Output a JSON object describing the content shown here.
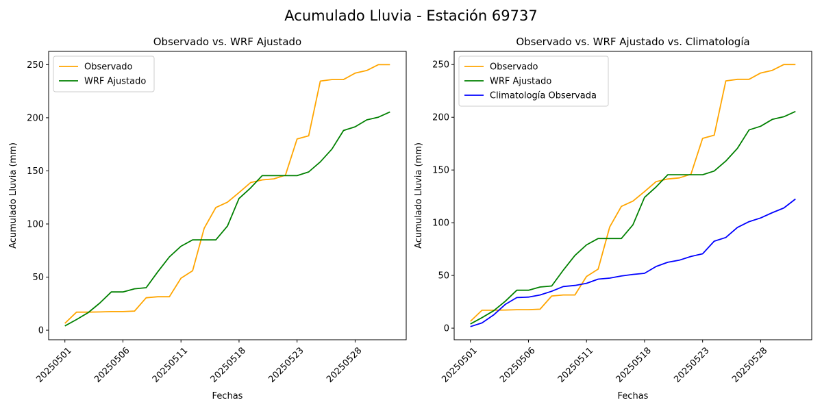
{
  "figure": {
    "suptitle": "Acumulado Lluvia - Estación 69737"
  },
  "chart_data": [
    {
      "type": "line",
      "title": "Observado vs. WRF Ajustado",
      "xlabel": "Fechas",
      "ylabel": "Acumulado Lluvia (mm)",
      "ylim": [
        -9,
        262.5
      ],
      "yticks": [
        0,
        50,
        100,
        150,
        200,
        250
      ],
      "xtick_labels": [
        "20250501",
        "20250506",
        "20250511",
        "20250518",
        "20250523",
        "20250528"
      ],
      "xtick_index": [
        0,
        5,
        10,
        15,
        20,
        25
      ],
      "legend": "top-left",
      "grid": false,
      "series": [
        {
          "name": "Observado",
          "color": "#ffa500",
          "values": [
            6.5,
            17,
            17,
            17.2,
            17.5,
            17.5,
            18,
            30.5,
            31.5,
            31.5,
            49,
            56,
            96,
            115.5,
            120.5,
            129.5,
            139,
            141.5,
            142.5,
            146,
            180,
            183,
            234.5,
            236,
            236,
            242,
            244.5,
            250,
            250
          ]
        },
        {
          "name": "WRF Ajustado",
          "color": "#008000",
          "values": [
            4,
            10,
            16.5,
            25.5,
            36,
            36,
            39,
            40,
            55,
            69,
            79,
            85,
            85,
            85,
            98,
            124,
            134,
            145.5,
            145.5,
            145.5,
            145.5,
            149,
            158.5,
            170.5,
            188,
            191.5,
            198,
            200.5,
            205.5
          ]
        }
      ]
    },
    {
      "type": "line",
      "title": "Observado vs. WRF Ajustado vs. Climatología",
      "xlabel": "Fechas",
      "ylabel": "Acumulado Lluvia (mm)",
      "ylim": [
        -11,
        262.5
      ],
      "yticks": [
        0,
        50,
        100,
        150,
        200,
        250
      ],
      "xtick_labels": [
        "20250501",
        "20250506",
        "20250511",
        "20250518",
        "20250523",
        "20250528"
      ],
      "xtick_index": [
        0,
        5,
        10,
        15,
        20,
        25
      ],
      "legend": "top-left",
      "grid": false,
      "series": [
        {
          "name": "Observado",
          "color": "#ffa500",
          "values": [
            6.5,
            17,
            17,
            17.2,
            17.5,
            17.5,
            18,
            30.5,
            31.5,
            31.5,
            49,
            56,
            96,
            115.5,
            120.5,
            129.5,
            139,
            141.5,
            142.5,
            146,
            180,
            183,
            234.5,
            236,
            236,
            242,
            244.5,
            250,
            250
          ]
        },
        {
          "name": "WRF Ajustado",
          "color": "#008000",
          "values": [
            4,
            10,
            16.5,
            25.5,
            36,
            36,
            39,
            40,
            55,
            69,
            79,
            85,
            85,
            85,
            98,
            124,
            134,
            145.5,
            145.5,
            145.5,
            145.5,
            149,
            158.5,
            170.5,
            188,
            191.5,
            198,
            200.5,
            205.5
          ]
        },
        {
          "name": "Climatología Observada",
          "color": "#0000ff",
          "values": [
            1.5,
            5,
            12.5,
            22.5,
            29,
            29.5,
            31.5,
            35,
            39.5,
            40.5,
            42.5,
            46.5,
            47.5,
            49.5,
            51,
            52,
            58.5,
            62.5,
            64.5,
            68,
            70.5,
            82.5,
            86,
            95.5,
            101,
            104.5,
            109.5,
            114,
            122.5
          ]
        }
      ]
    }
  ]
}
